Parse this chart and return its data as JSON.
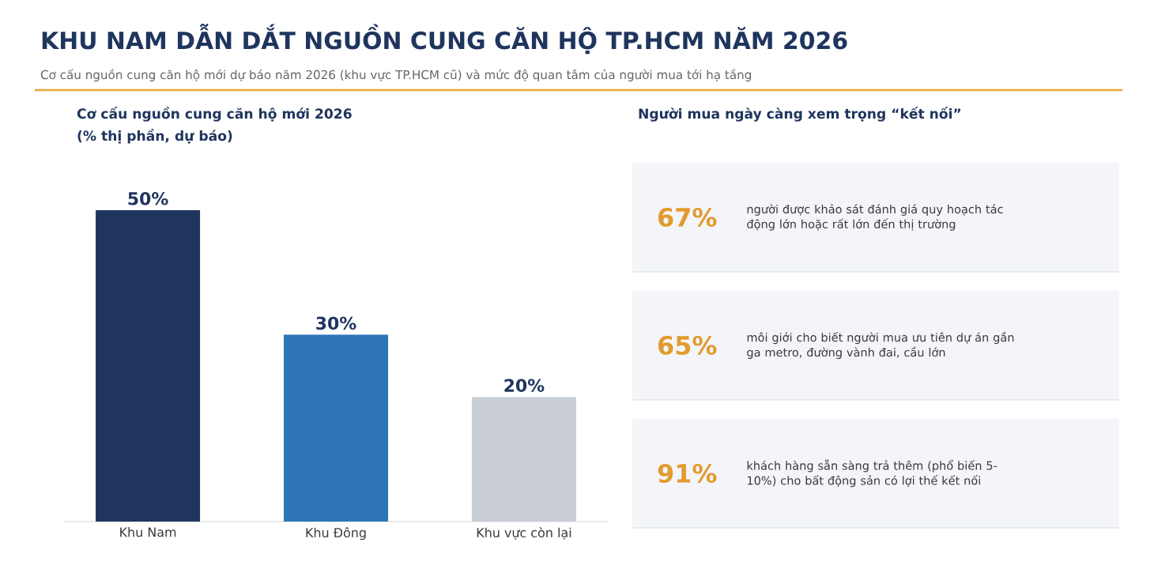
{
  "chart_data": [
    {
      "type": "other",
      "title": "KHU NAM DẪN DẮT NGUỒN CUNG CĂN HỘ TP.HCM NĂM 2026",
      "subtitle": "Cơ cấu nguồn cung căn hộ mới dự báo năm 2026 (khu vực TP.HCM cũ) và mức độ quan tâm của người mua tới hạ tầng"
    },
    {
      "type": "bar",
      "title": "Cơ cấu nguồn cung căn hộ mới 2026",
      "subtitle": "(% thị phần, dự báo)",
      "categories": [
        "Khu Nam",
        "Khu Đông",
        "Khu vực còn lại"
      ],
      "values": [
        50,
        30,
        20
      ],
      "colors": [
        "#1f355e",
        "#2e75b6",
        "#c9cdd6"
      ],
      "value_labels": [
        "50%",
        "30%",
        "20%"
      ]
    },
    {
      "type": "other",
      "title": "Người mua ngày càng xem trọng “kết nối”",
      "categories": [
        "người được khảo sát đánh giá quy hoạch tác động lớn hoặc rất lớn đến thị trường",
        "môi giới cho biết người mua ưu tiên dự án gần ga metro, đường vành đai, cầu lớn",
        "khách hàng sẵn sàng trả thêm (phổ biến 5-10%) cho bất động sản có lợi thế kết nối"
      ],
      "values": [
        67,
        65,
        91
      ],
      "value_labels": [
        "67%",
        "65%",
        "91%"
      ]
    }
  ]
}
